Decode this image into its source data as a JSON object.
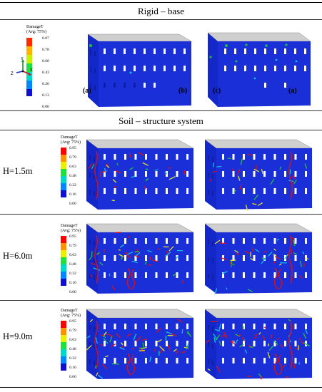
{
  "sections": {
    "rigid_title": "Rigid – base",
    "soil_title": "Soil – structure system"
  },
  "rigid_legend": {
    "title_line1": "DamageT",
    "title_line2": "(Avg: 75%)",
    "ticks": [
      "0.87",
      "0.78",
      "0.60",
      "0.43",
      "0.26",
      "0.13",
      "0.00"
    ]
  },
  "soil_legend": {
    "title_line1": "DamageT",
    "title_line2": "(Avg: 75%)",
    "ticks": [
      "0.95",
      "0.79",
      "0.63",
      "0.48",
      "0.32",
      "0.16",
      "0.00"
    ]
  },
  "axes": {
    "y": "Y",
    "z": "Z",
    "x": "X"
  },
  "panel_labels": [
    "(a)",
    "(b)",
    "(c)",
    "(a)"
  ],
  "rows": [
    {
      "label": "H=1.5m"
    },
    {
      "label": "H=6.0m"
    },
    {
      "label": "H=9.0m"
    }
  ],
  "colors": {
    "building_blue": "#1a2fd8",
    "roof_gray": "#c8c8c8",
    "damage_red": "#e01010",
    "damage_green": "#22c040",
    "damage_cyan": "#10c0e0",
    "damage_yellow": "#e8e020"
  }
}
